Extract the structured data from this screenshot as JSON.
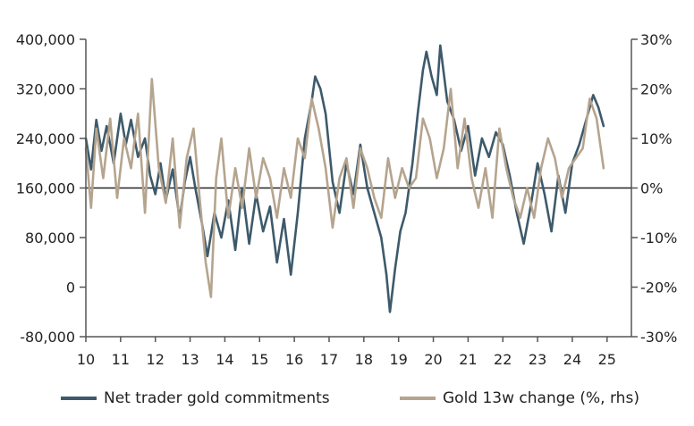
{
  "chart_data": {
    "type": "line",
    "title": "",
    "xlabel": "",
    "ylabel": "",
    "x_ticks": [
      "10",
      "11",
      "12",
      "13",
      "14",
      "15",
      "16",
      "17",
      "18",
      "19",
      "20",
      "21",
      "22",
      "23",
      "24",
      "25"
    ],
    "x_range": [
      10,
      25.7
    ],
    "y_left": {
      "ylim": [
        -80000,
        400000
      ],
      "ticks": [
        -80000,
        0,
        80000,
        160000,
        240000,
        320000,
        400000
      ],
      "tick_labels": [
        "-80,000",
        "0",
        "80,000",
        "160,000",
        "240,000",
        "320,000",
        "400,000"
      ]
    },
    "y_right": {
      "ylim": [
        -30,
        30
      ],
      "ticks": [
        -30,
        -20,
        -10,
        0,
        10,
        20,
        30
      ],
      "tick_labels": [
        "-30%",
        "-20%",
        "-10%",
        "0%",
        "10%",
        "20%",
        "30%"
      ]
    },
    "reference_line": 160000,
    "legend_position": "bottom",
    "series": [
      {
        "name": "Net trader gold commitments",
        "axis": "left",
        "color": "#3d5a6b",
        "x": [
          10.0,
          10.15,
          10.3,
          10.45,
          10.6,
          10.8,
          11.0,
          11.15,
          11.3,
          11.5,
          11.7,
          11.85,
          12.0,
          12.15,
          12.3,
          12.5,
          12.7,
          12.85,
          13.0,
          13.15,
          13.35,
          13.5,
          13.7,
          13.9,
          14.1,
          14.3,
          14.5,
          14.7,
          14.9,
          15.1,
          15.3,
          15.5,
          15.7,
          15.9,
          16.1,
          16.3,
          16.5,
          16.6,
          16.75,
          16.9,
          17.1,
          17.3,
          17.5,
          17.7,
          17.9,
          18.1,
          18.3,
          18.5,
          18.65,
          18.75,
          18.9,
          19.05,
          19.2,
          19.4,
          19.55,
          19.7,
          19.8,
          19.95,
          20.1,
          20.2,
          20.4,
          20.6,
          20.8,
          21.0,
          21.2,
          21.4,
          21.6,
          21.8,
          22.0,
          22.2,
          22.4,
          22.6,
          22.8,
          23.0,
          23.2,
          23.4,
          23.6,
          23.8,
          24.0,
          24.2,
          24.4,
          24.6,
          24.75,
          24.9
        ],
        "values": [
          240000,
          190000,
          270000,
          220000,
          260000,
          200000,
          280000,
          230000,
          270000,
          210000,
          240000,
          180000,
          150000,
          200000,
          140000,
          190000,
          110000,
          170000,
          210000,
          160000,
          100000,
          50000,
          120000,
          80000,
          140000,
          60000,
          160000,
          70000,
          150000,
          90000,
          130000,
          40000,
          110000,
          20000,
          120000,
          240000,
          300000,
          340000,
          320000,
          280000,
          170000,
          120000,
          200000,
          150000,
          230000,
          160000,
          120000,
          80000,
          20000,
          -40000,
          30000,
          90000,
          120000,
          200000,
          280000,
          350000,
          380000,
          340000,
          310000,
          390000,
          300000,
          270000,
          220000,
          260000,
          180000,
          240000,
          210000,
          250000,
          230000,
          180000,
          120000,
          70000,
          130000,
          200000,
          150000,
          90000,
          180000,
          120000,
          200000,
          230000,
          270000,
          310000,
          290000,
          260000
        ]
      },
      {
        "name": "Gold 13w change (%, rhs)",
        "axis": "right",
        "color": "#b5a48e",
        "x": [
          10.0,
          10.15,
          10.3,
          10.5,
          10.7,
          10.9,
          11.1,
          11.3,
          11.5,
          11.7,
          11.9,
          12.1,
          12.3,
          12.5,
          12.7,
          12.9,
          13.1,
          13.3,
          13.45,
          13.6,
          13.75,
          13.9,
          14.1,
          14.3,
          14.5,
          14.7,
          14.9,
          15.1,
          15.3,
          15.5,
          15.7,
          15.9,
          16.1,
          16.3,
          16.5,
          16.7,
          16.9,
          17.1,
          17.3,
          17.5,
          17.7,
          17.9,
          18.1,
          18.3,
          18.5,
          18.7,
          18.9,
          19.1,
          19.3,
          19.5,
          19.7,
          19.9,
          20.1,
          20.3,
          20.5,
          20.7,
          20.9,
          21.1,
          21.3,
          21.5,
          21.7,
          21.9,
          22.1,
          22.3,
          22.5,
          22.7,
          22.9,
          23.1,
          23.3,
          23.5,
          23.7,
          23.9,
          24.1,
          24.3,
          24.5,
          24.7,
          24.9
        ],
        "values": [
          8,
          -4,
          12,
          2,
          14,
          -2,
          10,
          4,
          15,
          -5,
          22,
          4,
          -3,
          10,
          -8,
          6,
          12,
          -4,
          -15,
          -22,
          2,
          10,
          -6,
          4,
          -4,
          8,
          -2,
          6,
          2,
          -6,
          4,
          -2,
          10,
          6,
          18,
          12,
          4,
          -8,
          2,
          6,
          -4,
          8,
          4,
          -2,
          -6,
          6,
          -2,
          4,
          0,
          2,
          14,
          10,
          2,
          8,
          20,
          4,
          14,
          2,
          -4,
          4,
          -6,
          12,
          4,
          -2,
          -6,
          0,
          -6,
          4,
          10,
          6,
          -2,
          4,
          6,
          8,
          18,
          14,
          4
        ]
      }
    ]
  },
  "legend": {
    "items": [
      {
        "label": "Net trader gold commitments",
        "color": "#3d5a6b"
      },
      {
        "label": "Gold 13w change (%, rhs)",
        "color": "#b5a48e"
      }
    ]
  }
}
